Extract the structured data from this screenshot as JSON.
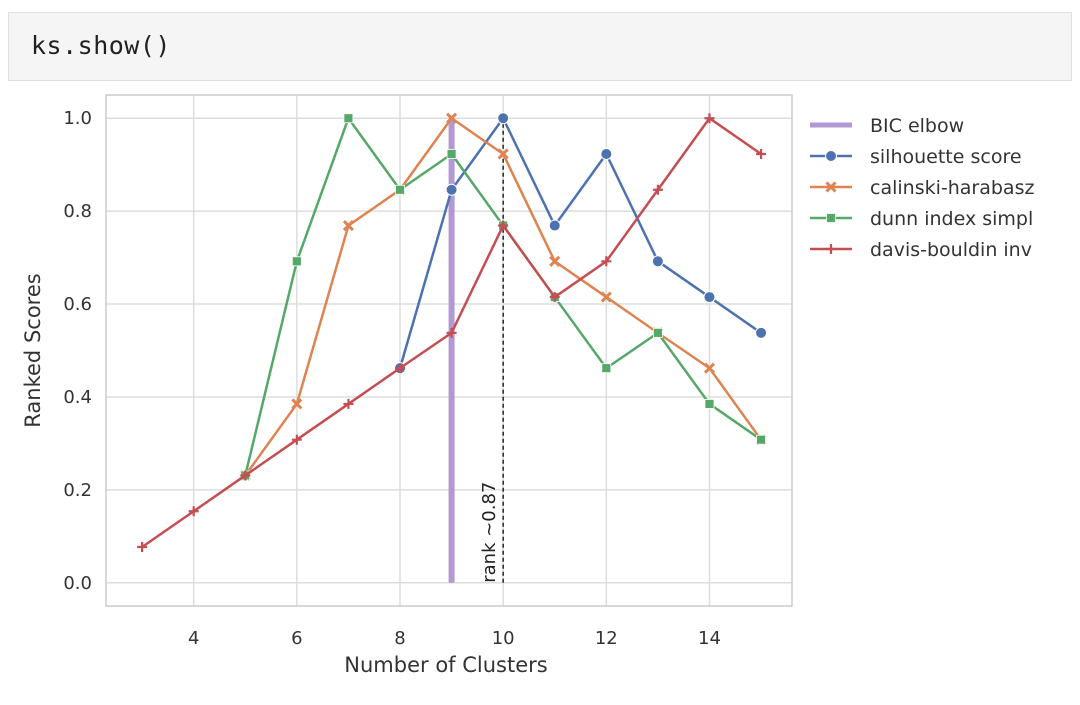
{
  "code_cell": {
    "source": "ks.show()"
  },
  "chart_data": {
    "type": "line",
    "xlabel": "Number of Clusters",
    "ylabel": "Ranked Scores",
    "xlim": [
      2.3,
      15.6
    ],
    "ylim": [
      -0.05,
      1.05
    ],
    "x_ticks": [
      4,
      6,
      8,
      10,
      12,
      14
    ],
    "y_ticks": [
      0.0,
      0.2,
      0.4,
      0.6,
      0.8,
      1.0
    ],
    "x_tick_labels": [
      "4",
      "6",
      "8",
      "10",
      "12",
      "14"
    ],
    "y_tick_labels": [
      "0.0",
      "0.2",
      "0.4",
      "0.6",
      "0.8",
      "1.0"
    ],
    "grid": true,
    "legend_position": "outside-right",
    "vertical_lines": [
      {
        "name": "BIC elbow",
        "x": 9,
        "y_range": [
          0.0,
          1.0
        ],
        "color": "#b399d4",
        "style": "solid"
      },
      {
        "name": "rank",
        "x": 10,
        "y_range": [
          0.0,
          1.0
        ],
        "color": "#222222",
        "style": "dashed"
      }
    ],
    "annotation": {
      "text": "rank ~0.87",
      "x": 10,
      "y": 0.0,
      "rotation": -90
    },
    "series": [
      {
        "name": "silhouette score",
        "color": "#4c72b0",
        "marker": "circle",
        "x": [
          8,
          9,
          10,
          11,
          12,
          13,
          14,
          15
        ],
        "values": [
          0.462,
          0.846,
          1.0,
          0.769,
          0.923,
          0.692,
          0.615,
          0.538
        ]
      },
      {
        "name": "calinski-harabasz",
        "color": "#dd8452",
        "marker": "x",
        "x": [
          5,
          6,
          7,
          8,
          9,
          10,
          11,
          12,
          13,
          14,
          15
        ],
        "values": [
          0.231,
          0.385,
          0.769,
          0.846,
          1.0,
          0.923,
          0.692,
          0.615,
          0.538,
          0.462,
          0.308
        ]
      },
      {
        "name": "dunn index simpl",
        "color": "#55a868",
        "marker": "square",
        "x": [
          5,
          6,
          7,
          8,
          9,
          10,
          11,
          12,
          13,
          14,
          15
        ],
        "values": [
          0.231,
          0.692,
          1.0,
          0.846,
          0.923,
          0.769,
          0.615,
          0.462,
          0.538,
          0.385,
          0.308
        ]
      },
      {
        "name": "davis-bouldin inv",
        "color": "#c44e52",
        "marker": "plus",
        "x": [
          3,
          4,
          5,
          6,
          7,
          8,
          9,
          10,
          11,
          12,
          13,
          14,
          15
        ],
        "values": [
          0.077,
          0.154,
          0.231,
          0.308,
          0.385,
          0.462,
          0.538,
          0.769,
          0.615,
          0.692,
          0.846,
          1.0,
          0.923
        ]
      }
    ]
  }
}
